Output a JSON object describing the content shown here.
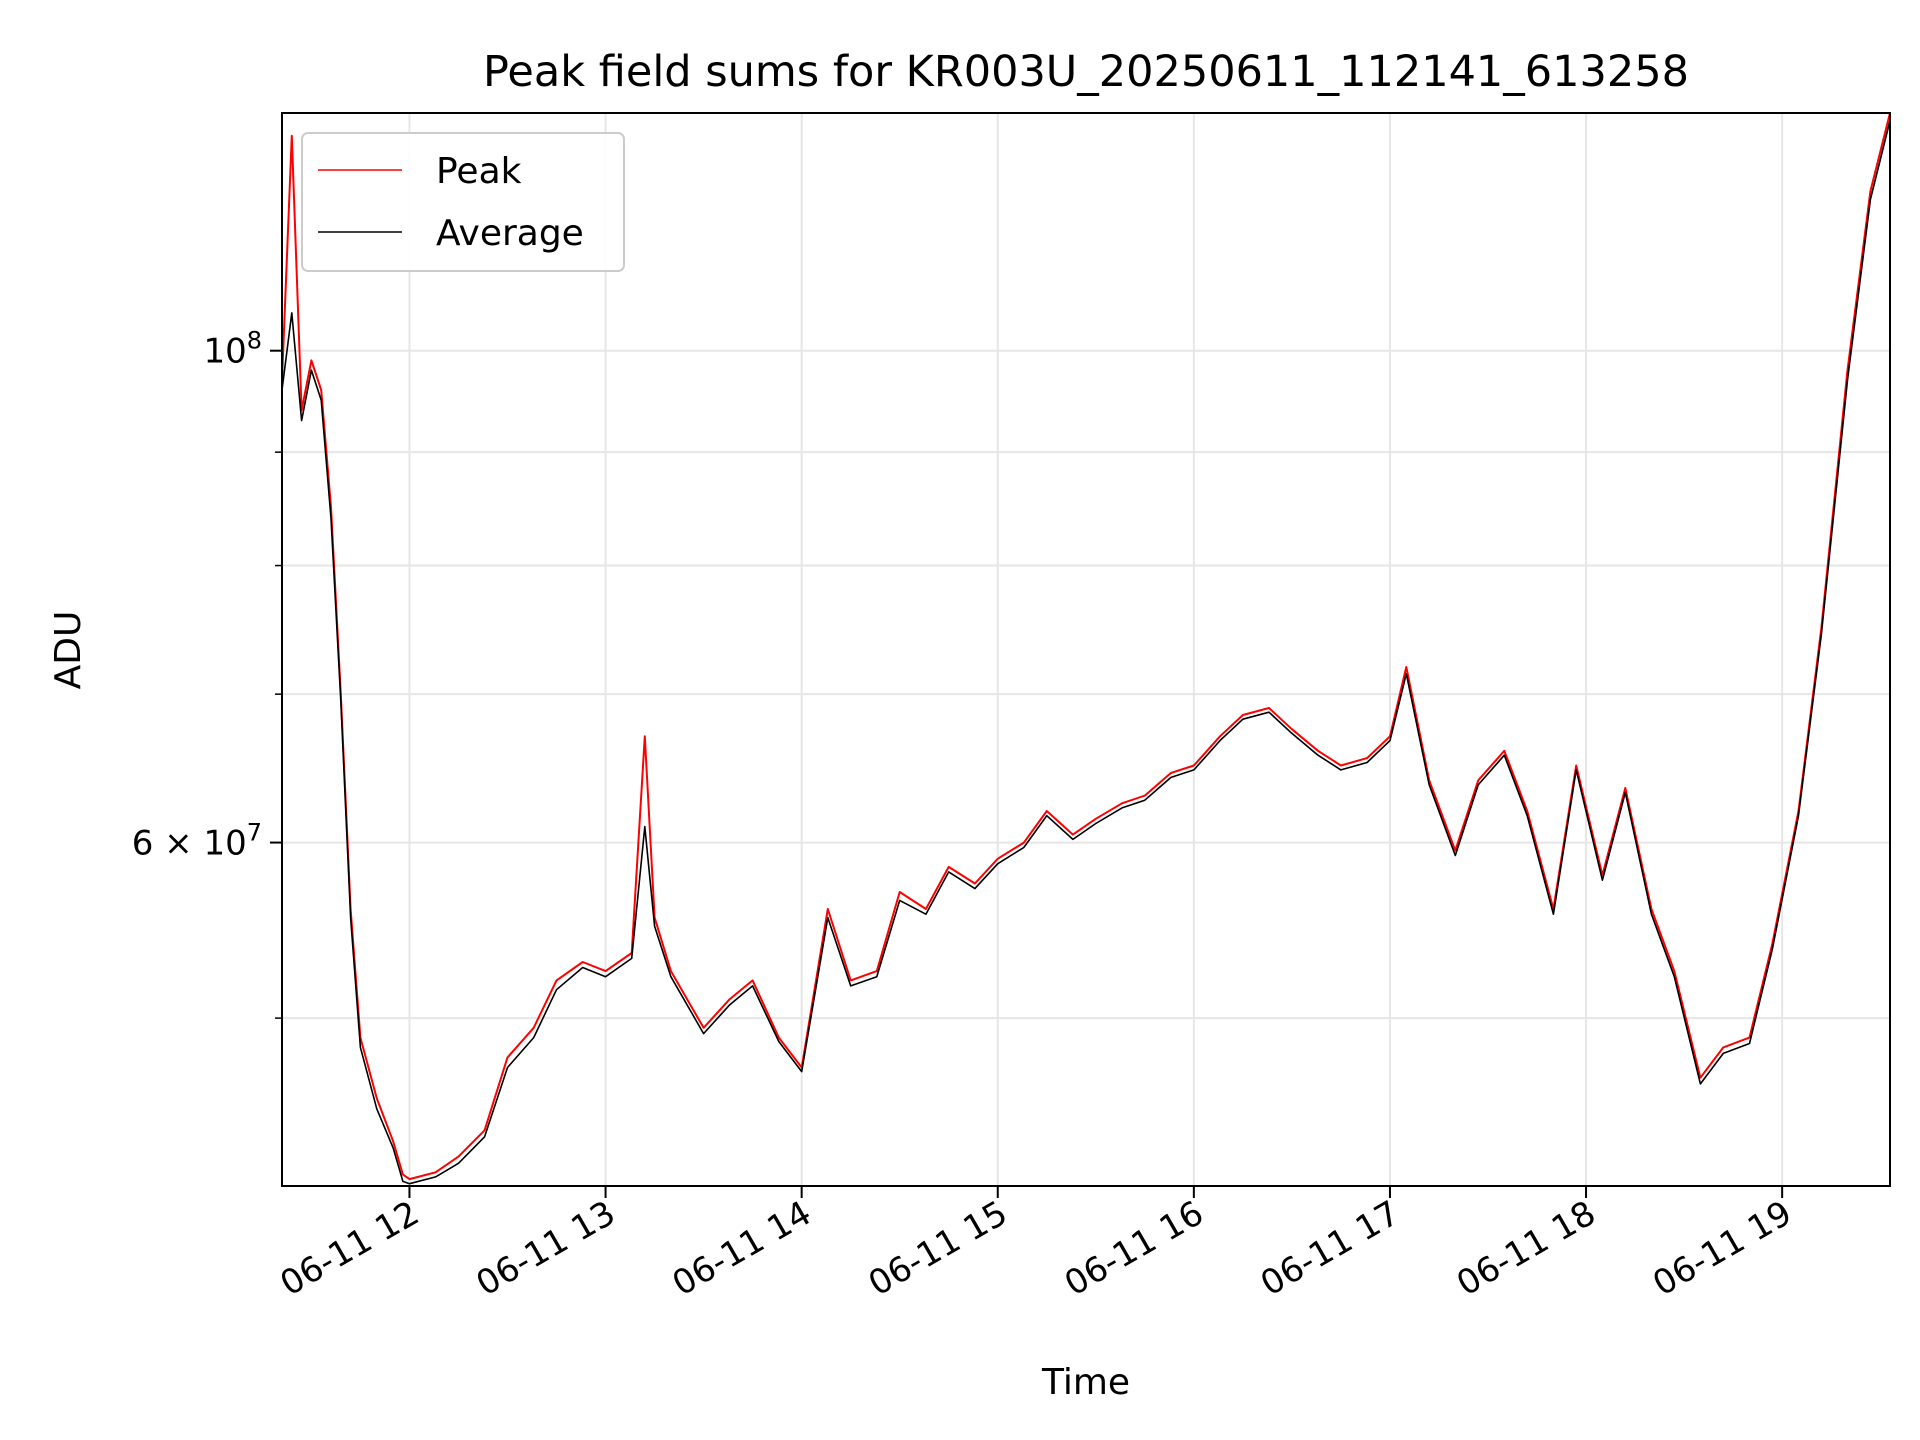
{
  "chart_data": {
    "type": "line",
    "title": "Peak field sums for KR003U_20250611_112141_613258",
    "xlabel": "Time",
    "ylabel": "ADU",
    "y_scale": "log",
    "xlim": [
      "06-11 11:21",
      "06-11 19:33"
    ],
    "ylim": [
      42000000,
      128000000
    ],
    "x_tick_labels": [
      "06-11 12",
      "06-11 13",
      "06-11 14",
      "06-11 15",
      "06-11 16",
      "06-11 17",
      "06-11 18",
      "06-11 19"
    ],
    "x_tick_values": [
      "06-11 12:00",
      "06-11 13:00",
      "06-11 14:00",
      "06-11 15:00",
      "06-11 16:00",
      "06-11 17:00",
      "06-11 18:00",
      "06-11 19:00"
    ],
    "y_major_ticks": [
      {
        "value": 100000000,
        "base": "10",
        "exp": "8"
      },
      {
        "value": 60000000,
        "coef": "6",
        "times": "×",
        "base": "10",
        "exp": "7"
      }
    ],
    "y_minor_ticks": [
      50000000,
      70000000,
      80000000,
      90000000
    ],
    "grid": true,
    "legend_position": "top-left",
    "series": [
      {
        "name": "Peak",
        "color": "#ff0000",
        "x": [
          "06-11 11:21",
          "06-11 11:24",
          "06-11 11:27",
          "06-11 11:30",
          "06-11 11:33",
          "06-11 11:36",
          "06-11 11:39",
          "06-11 11:42",
          "06-11 11:45",
          "06-11 11:50",
          "06-11 11:55",
          "06-11 11:58",
          "06-11 12:00",
          "06-11 12:08",
          "06-11 12:15",
          "06-11 12:23",
          "06-11 12:30",
          "06-11 12:38",
          "06-11 12:45",
          "06-11 12:53",
          "06-11 13:00",
          "06-11 13:08",
          "06-11 13:12",
          "06-11 13:15",
          "06-11 13:20",
          "06-11 13:30",
          "06-11 13:38",
          "06-11 13:45",
          "06-11 13:53",
          "06-11 14:00",
          "06-11 14:08",
          "06-11 14:15",
          "06-11 14:23",
          "06-11 14:30",
          "06-11 14:38",
          "06-11 14:45",
          "06-11 14:53",
          "06-11 15:00",
          "06-11 15:08",
          "06-11 15:15",
          "06-11 15:23",
          "06-11 15:30",
          "06-11 15:38",
          "06-11 15:45",
          "06-11 15:53",
          "06-11 16:00",
          "06-11 16:08",
          "06-11 16:15",
          "06-11 16:23",
          "06-11 16:30",
          "06-11 16:38",
          "06-11 16:45",
          "06-11 16:53",
          "06-11 17:00",
          "06-11 17:05",
          "06-11 17:12",
          "06-11 17:20",
          "06-11 17:27",
          "06-11 17:35",
          "06-11 17:42",
          "06-11 17:50",
          "06-11 17:57",
          "06-11 18:05",
          "06-11 18:12",
          "06-11 18:20",
          "06-11 18:27",
          "06-11 18:35",
          "06-11 18:42",
          "06-11 18:50",
          "06-11 18:57",
          "06-11 19:05",
          "06-11 19:12",
          "06-11 19:20",
          "06-11 19:27",
          "06-11 19:33"
        ],
        "y": [
          97000000,
          125000000,
          94000000,
          99000000,
          96000000,
          85000000,
          70000000,
          56000000,
          49000000,
          46000000,
          44000000,
          42500000,
          42300000,
          42600000,
          43300000,
          44500000,
          48000000,
          49500000,
          52000000,
          53000000,
          52500000,
          53500000,
          67000000,
          55500000,
          52500000,
          49500000,
          51000000,
          52000000,
          49000000,
          47500000,
          56000000,
          52000000,
          52500000,
          57000000,
          56000000,
          58500000,
          57500000,
          59000000,
          60000000,
          62000000,
          60500000,
          61500000,
          62500000,
          63000000,
          64500000,
          65000000,
          67000000,
          68500000,
          69000000,
          67500000,
          66000000,
          65000000,
          65500000,
          67000000,
          72000000,
          64000000,
          59500000,
          64000000,
          66000000,
          62000000,
          56000000,
          65000000,
          58000000,
          63500000,
          56000000,
          52500000,
          47000000,
          48500000,
          49000000,
          54000000,
          62000000,
          75000000,
          98000000,
          118000000,
          128000000
        ]
      },
      {
        "name": "Average",
        "color": "#000000",
        "x": [
          "06-11 11:21",
          "06-11 11:24",
          "06-11 11:27",
          "06-11 11:30",
          "06-11 11:33",
          "06-11 11:36",
          "06-11 11:39",
          "06-11 11:42",
          "06-11 11:45",
          "06-11 11:50",
          "06-11 11:55",
          "06-11 11:58",
          "06-11 12:00",
          "06-11 12:08",
          "06-11 12:15",
          "06-11 12:23",
          "06-11 12:30",
          "06-11 12:38",
          "06-11 12:45",
          "06-11 12:53",
          "06-11 13:00",
          "06-11 13:08",
          "06-11 13:12",
          "06-11 13:15",
          "06-11 13:20",
          "06-11 13:30",
          "06-11 13:38",
          "06-11 13:45",
          "06-11 13:53",
          "06-11 14:00",
          "06-11 14:08",
          "06-11 14:15",
          "06-11 14:23",
          "06-11 14:30",
          "06-11 14:38",
          "06-11 14:45",
          "06-11 14:53",
          "06-11 15:00",
          "06-11 15:08",
          "06-11 15:15",
          "06-11 15:23",
          "06-11 15:30",
          "06-11 15:38",
          "06-11 15:45",
          "06-11 15:53",
          "06-11 16:00",
          "06-11 16:08",
          "06-11 16:15",
          "06-11 16:23",
          "06-11 16:30",
          "06-11 16:38",
          "06-11 16:45",
          "06-11 16:53",
          "06-11 17:00",
          "06-11 17:05",
          "06-11 17:12",
          "06-11 17:20",
          "06-11 17:27",
          "06-11 17:35",
          "06-11 17:42",
          "06-11 17:50",
          "06-11 17:57",
          "06-11 18:05",
          "06-11 18:12",
          "06-11 18:20",
          "06-11 18:27",
          "06-11 18:35",
          "06-11 18:42",
          "06-11 18:50",
          "06-11 18:57",
          "06-11 19:05",
          "06-11 19:12",
          "06-11 19:20",
          "06-11 19:27",
          "06-11 19:33"
        ],
        "y": [
          96000000,
          104000000,
          93000000,
          98000000,
          95000000,
          84000000,
          69500000,
          55500000,
          48500000,
          45500000,
          43700000,
          42200000,
          42100000,
          42400000,
          43000000,
          44200000,
          47500000,
          49000000,
          51500000,
          52700000,
          52200000,
          53200000,
          61000000,
          55000000,
          52200000,
          49200000,
          50700000,
          51700000,
          48800000,
          47300000,
          55500000,
          51700000,
          52200000,
          56500000,
          55700000,
          58200000,
          57200000,
          58700000,
          59700000,
          61700000,
          60200000,
          61200000,
          62200000,
          62700000,
          64200000,
          64700000,
          66700000,
          68200000,
          68700000,
          67200000,
          65700000,
          64700000,
          65200000,
          66700000,
          71500000,
          63700000,
          59200000,
          63700000,
          65700000,
          61700000,
          55700000,
          64700000,
          57700000,
          63200000,
          55700000,
          52200000,
          46700000,
          48200000,
          48700000,
          53700000,
          61700000,
          74500000,
          97000000,
          117000000,
          127000000
        ]
      }
    ]
  }
}
